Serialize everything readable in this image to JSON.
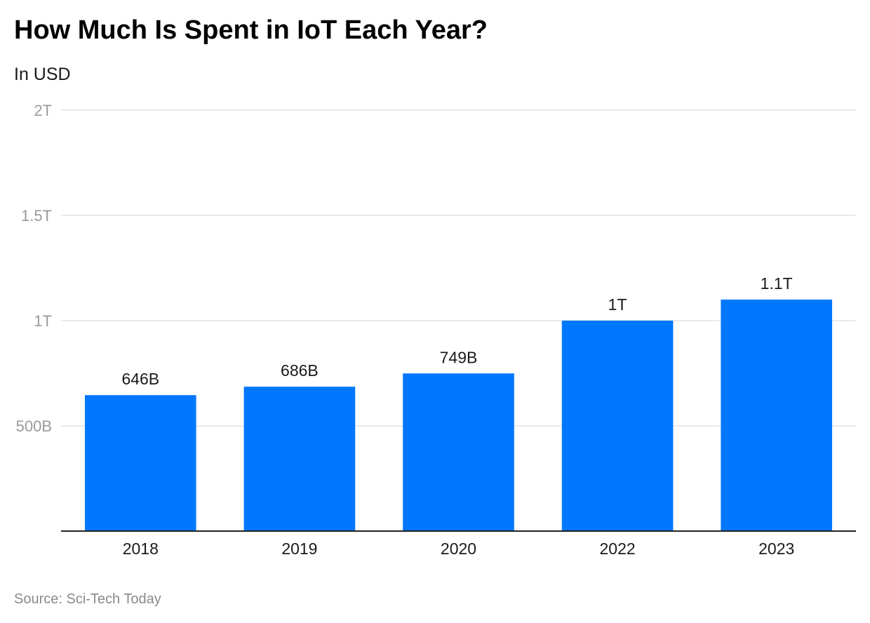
{
  "title": "How Much Is Spent in IoT Each Year?",
  "subtitle": "In USD",
  "source": "Source: Sci-Tech Today",
  "colors": {
    "bar": "#0077ff",
    "grid": "#e3e3e3",
    "axis": "#222222",
    "tick_label": "#9a9a9a",
    "text": "#1a1a1a"
  },
  "chart_data": {
    "type": "bar",
    "title": "How Much Is Spent in IoT Each Year?",
    "subtitle": "In USD",
    "xlabel": "",
    "ylabel": "",
    "categories": [
      "2018",
      "2019",
      "2020",
      "2022",
      "2023"
    ],
    "values": [
      646000000000,
      686000000000,
      749000000000,
      1000000000000,
      1100000000000
    ],
    "data_labels": [
      "646B",
      "686B",
      "749B",
      "1T",
      "1.1T"
    ],
    "ylim": [
      0,
      2000000000000
    ],
    "yticks": [
      {
        "value": 500000000000,
        "label": "500B"
      },
      {
        "value": 1000000000000,
        "label": "1T"
      },
      {
        "value": 1500000000000,
        "label": "1.5T"
      },
      {
        "value": 2000000000000,
        "label": "2T"
      }
    ],
    "grid": true,
    "legend": "none"
  }
}
